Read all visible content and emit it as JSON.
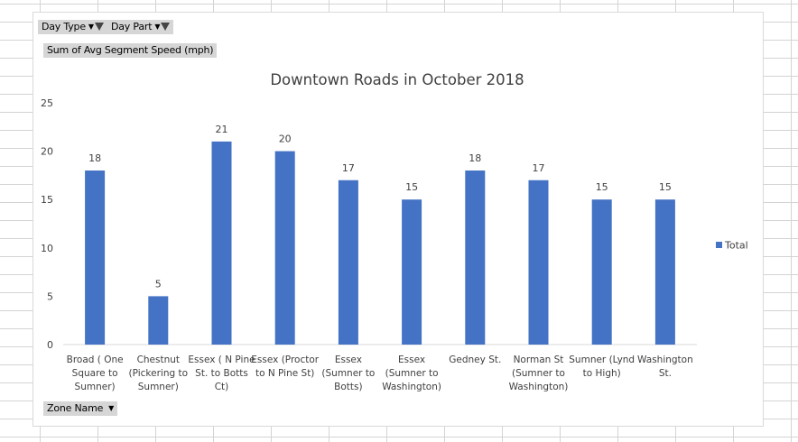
{
  "pivot_fields": {
    "filters": [
      {
        "label": "Day Type",
        "icon": "filter-dropdown-icon"
      },
      {
        "label": "Day Part",
        "icon": "filter-dropdown-icon"
      }
    ],
    "values_field": "Sum of Avg Segment Speed (mph)",
    "axis_field": {
      "label": "Zone Name",
      "icon": "dropdown-arrow-icon"
    }
  },
  "chart_data": {
    "type": "bar",
    "title": "Downtown Roads in October 2018",
    "categories": [
      [
        "Broad ( One",
        "Square to",
        "Sumner)"
      ],
      [
        "Chestnut",
        "(Pickering to",
        "Sumner)"
      ],
      [
        "Essex ( N Pine",
        "St. to Botts",
        "Ct)"
      ],
      [
        "Essex (Proctor",
        "to N Pine St)"
      ],
      [
        "Essex",
        "(Sumner to",
        "Botts)"
      ],
      [
        "Essex",
        "(Sumner to",
        "Washington)"
      ],
      [
        "Gedney St."
      ],
      [
        "Norman St",
        "(Sumner to",
        "Washington)"
      ],
      [
        "Sumner (Lynd",
        "to High)"
      ],
      [
        "Washington",
        "St."
      ]
    ],
    "series": [
      {
        "name": "Total",
        "values": [
          18,
          5,
          21,
          20,
          17,
          15,
          18,
          17,
          15,
          15
        ],
        "color": "#4472c4"
      }
    ],
    "ylim": [
      0,
      25
    ],
    "yticks": [
      0,
      5,
      10,
      15,
      20,
      25
    ],
    "data_labels": true,
    "legend_position": "right",
    "grid": false
  }
}
